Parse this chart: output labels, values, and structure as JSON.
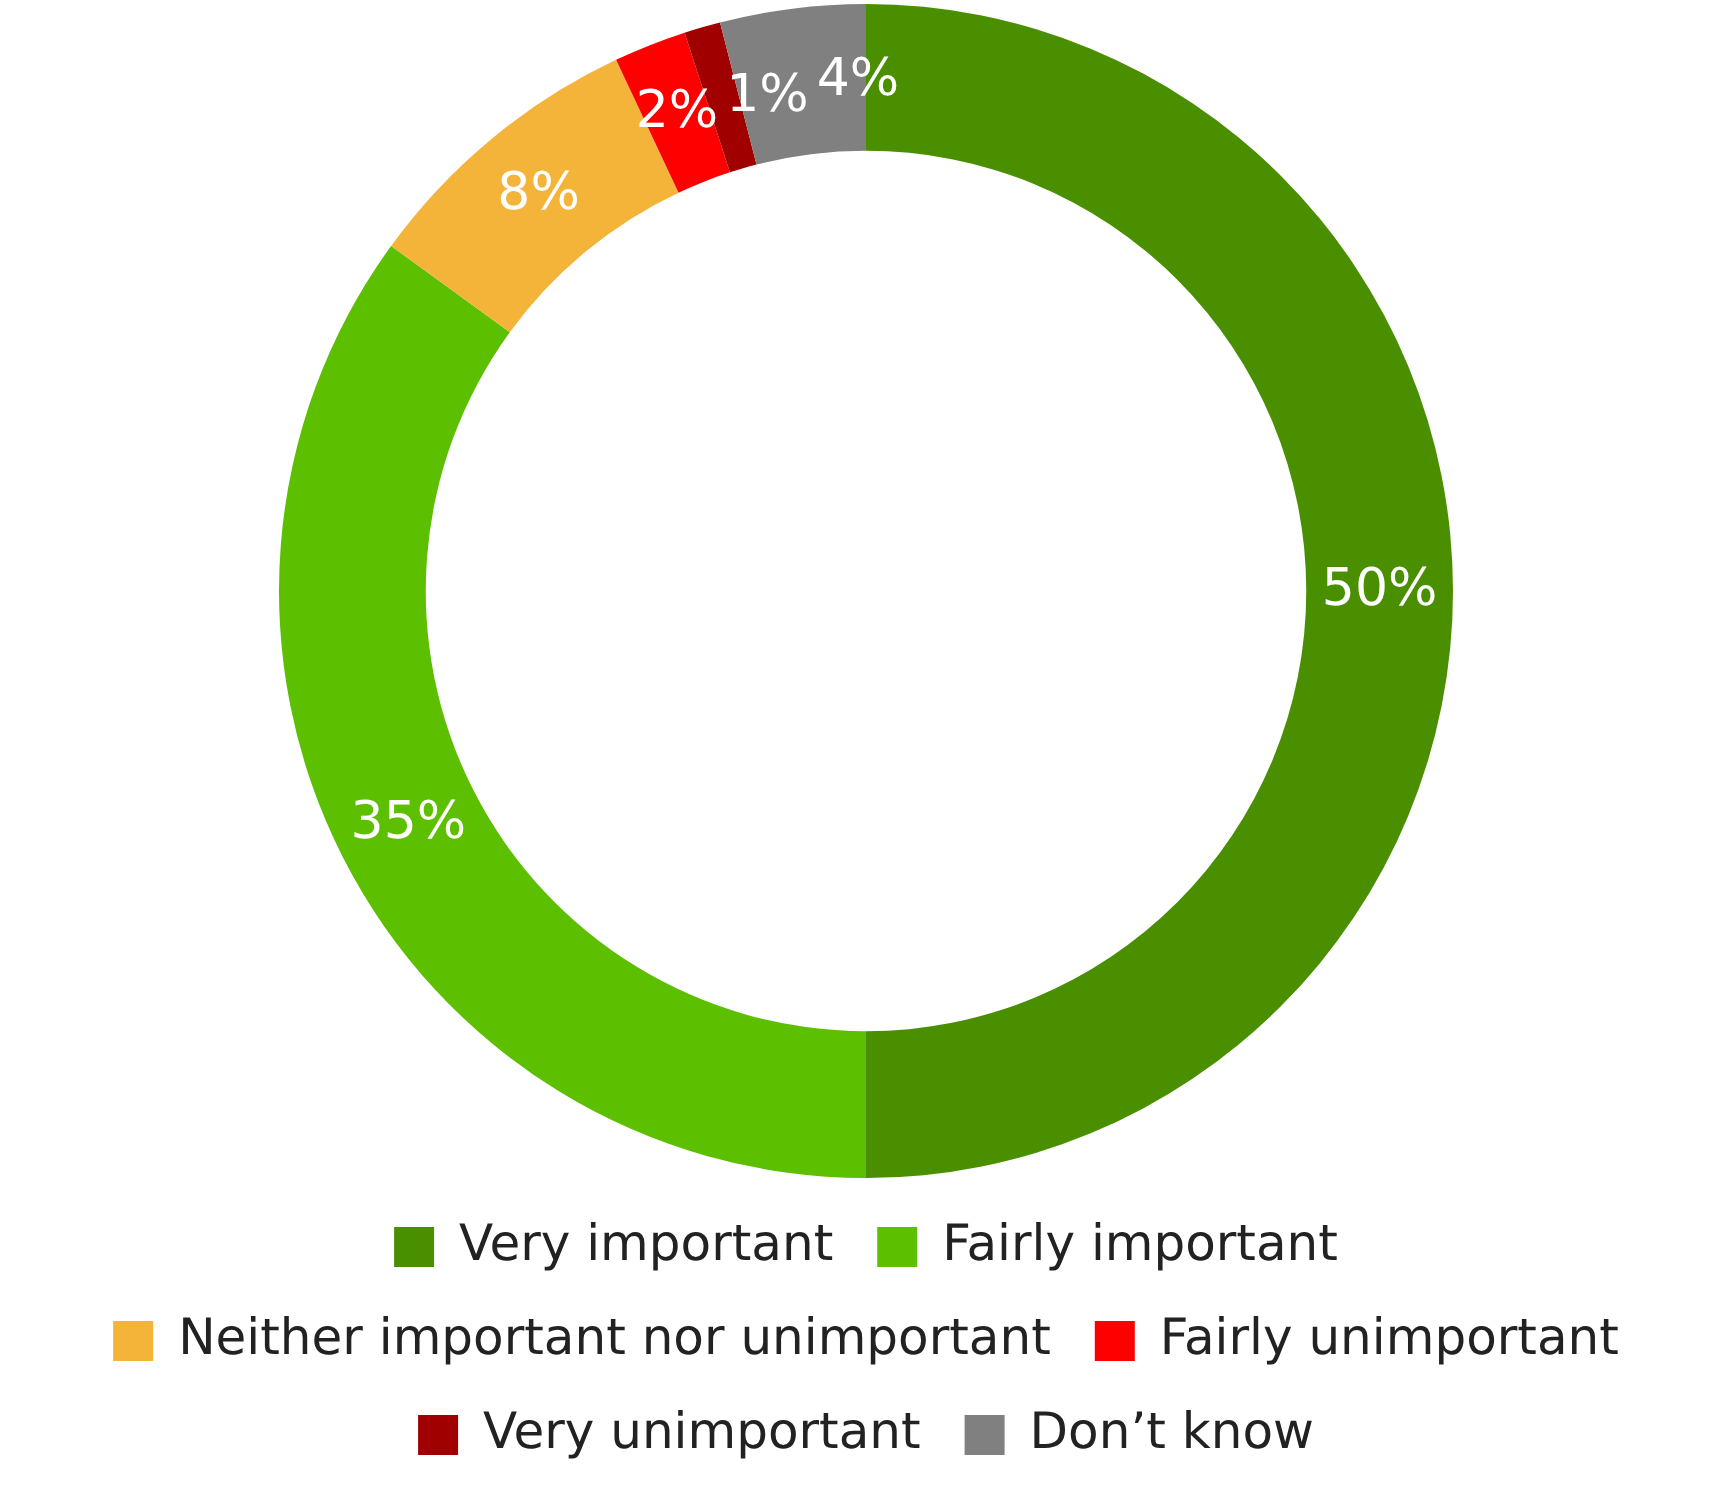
{
  "chart_data": {
    "type": "donut",
    "categories": [
      "Very important",
      "Fairly important",
      "Neither important nor unimportant",
      "Fairly unimportant",
      "Very unimportant",
      "Don’t know"
    ],
    "values": [
      50,
      35,
      8,
      2,
      1,
      4
    ],
    "colors": [
      "#4a8f00",
      "#5cbf00",
      "#f4b43a",
      "#ff0000",
      "#a00000",
      "#808080"
    ],
    "value_labels": [
      "50%",
      "35%",
      "8%",
      "2%",
      "1%",
      "4%"
    ],
    "legend": "bottom"
  }
}
